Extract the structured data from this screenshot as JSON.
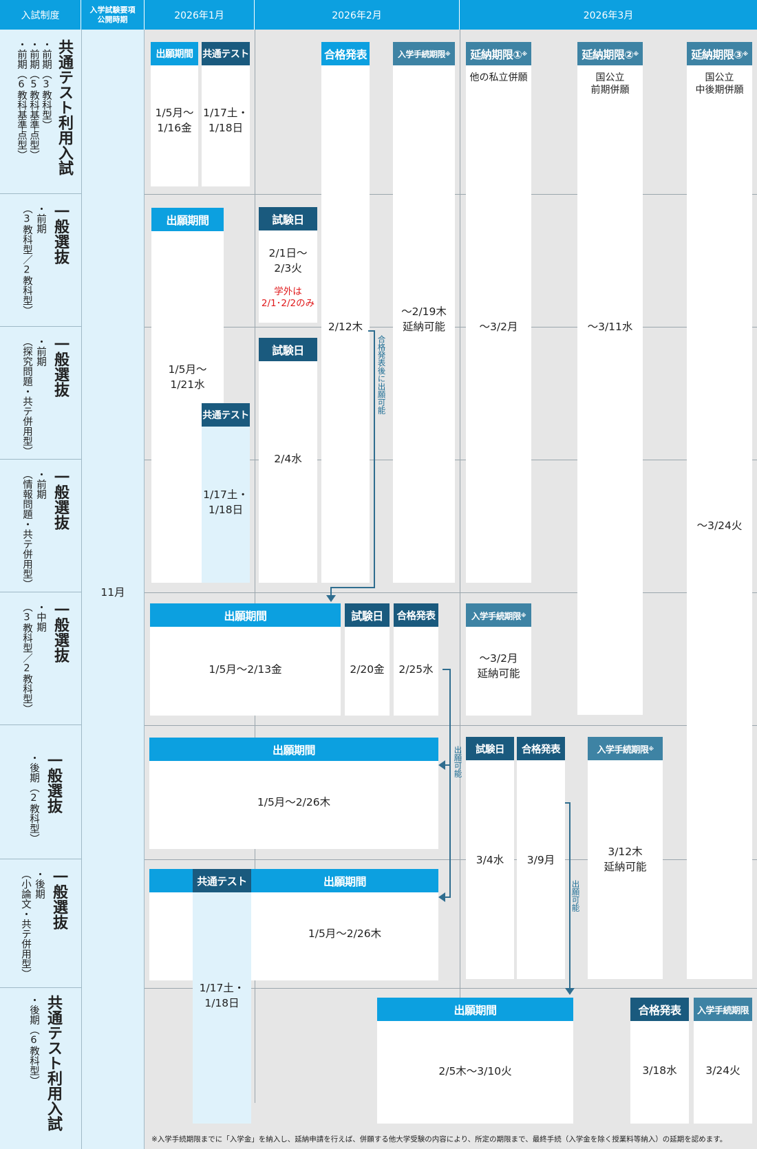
{
  "headers": {
    "system": "入試制度",
    "publish": "入学試験要項\n公開時期",
    "jan": "2026年1月",
    "feb": "2026年2月",
    "mar": "2026年3月"
  },
  "publish_month": "11月",
  "rows": [
    {
      "main": "共通テスト利用入試",
      "sub1": "・前期（3教科型）",
      "sub2": "・前期（5教科基準点型）",
      "sub3": "・前期（6教科基準点型）"
    },
    {
      "main": "一般選抜",
      "sub1": "・前期",
      "sub2": "（3教科型／2教科型）"
    },
    {
      "main": "一般選抜",
      "sub1": "・前期",
      "sub2": "（探究問題・共テ併用型）"
    },
    {
      "main": "一般選抜",
      "sub1": "・前期",
      "sub2": "（情報問題・共テ併用型）"
    },
    {
      "main": "一般選抜",
      "sub1": "・中期",
      "sub2": "（3教科型／2教科型）"
    },
    {
      "main": "一般選抜",
      "sub1": "・後期（2教科型）"
    },
    {
      "main": "一般選抜",
      "sub1": "・後期",
      "sub2": "（小論文・共テ併用型）"
    },
    {
      "main": "共通テスト利用入試",
      "sub1": "・後期（6教科型）"
    }
  ],
  "labels": {
    "application": "出願期間",
    "common_test": "共通テスト",
    "pass_announce": "合格発表",
    "enroll_deadline": "入学手続期限",
    "ext1": "延納期限①",
    "ext2": "延納期限②",
    "ext3": "延納期限③",
    "exam_day": "試験日",
    "note_mark": "※"
  },
  "texts": {
    "r1_app": "1/5月～\n1/16金",
    "r1_ct": "1/17土・\n1/18日",
    "ext1_note": "他の私立併願",
    "ext2_note": "国公立\n前期併願",
    "ext3_note": "国公立\n中後期併願",
    "pass_feb": "2/12木",
    "enroll_feb": "～2/19木\n延納可能",
    "ext1_date": "～3/2月",
    "ext2_date": "～3/11水",
    "ext3_date": "～3/24火",
    "exam1": "2/1日～\n2/3火",
    "exam1_note": "学外は\n2/1･2/2のみ",
    "exam2": "2/4水",
    "app_early": "1/5月～\n1/21水",
    "ct_early": "1/17土・\n1/18日",
    "mid_app": "1/5月～2/13金",
    "mid_exam": "2/20金",
    "mid_pass": "2/25水",
    "mid_enroll": "～3/2月\n延納可能",
    "late_app": "1/5月～2/26木",
    "late_exam": "3/4水",
    "late_pass": "3/9月",
    "late_enroll": "3/12木\n延納可能",
    "late2_app": "1/5月～2/26木",
    "late2_ct": "1/17土・\n1/18日",
    "final_app": "2/5木～3/10火",
    "final_pass": "3/18水",
    "final_enroll": "3/24火"
  },
  "connectors": {
    "after_pass": "合格発表後に出願可能",
    "possible": "出願可能"
  },
  "footnote": "※入学手続期限までに「入学金」を納入し、延納申請を行えば、併願する他大学受験の内容により、所定の期限まで、最終手続（入学金を除く授業料等納入）の延期を認めます。",
  "colors": {
    "light": "#0ca0e0",
    "dark": "#1a5a7e",
    "mid": "#3e83a4",
    "bg": "#e6e6e6",
    "rowbg": "#dff2fb"
  }
}
